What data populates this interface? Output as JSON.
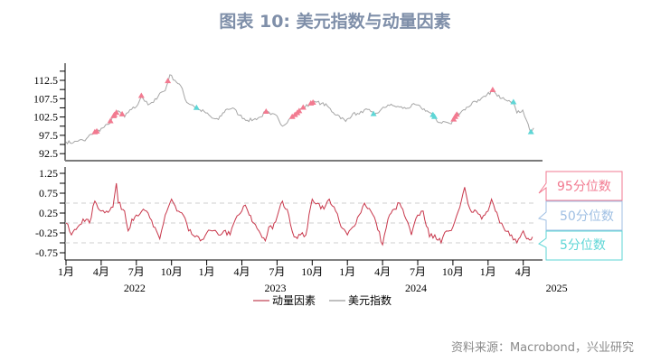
{
  "title": "图表 10: 美元指数与动量因素",
  "source": "资料来源：Macrobond，兴业研究",
  "colors": {
    "momentum": "#c8374b",
    "dxy": "#a6a6a6",
    "p95": "#f27a90",
    "p50": "#9fbfe3",
    "p5": "#5ed6d6"
  },
  "chart_data": [
    {
      "type": "line",
      "name": "dxy-panel",
      "ylim": [
        90,
        117.5
      ],
      "yticks": [
        "112.5",
        "107.5",
        "102.5",
        "97.5",
        "92.5"
      ],
      "series": [
        {
          "name": "美元指数",
          "x": [
            "2022-01-01",
            "2022-01-20",
            "2022-02-05",
            "2022-02-20",
            "2022-03-05",
            "2022-03-20",
            "2022-04-05",
            "2022-04-20",
            "2022-05-05",
            "2022-05-15",
            "2022-06-01",
            "2022-06-15",
            "2022-07-01",
            "2022-07-14",
            "2022-08-01",
            "2022-08-15",
            "2022-09-01",
            "2022-09-15",
            "2022-09-27",
            "2022-10-10",
            "2022-10-25",
            "2022-11-10",
            "2022-11-25",
            "2022-12-10",
            "2022-12-25",
            "2023-01-15",
            "2023-02-01",
            "2023-02-20",
            "2023-03-08",
            "2023-03-25",
            "2023-04-15",
            "2023-05-01",
            "2023-05-20",
            "2023-06-01",
            "2023-06-15",
            "2023-07-01",
            "2023-07-15",
            "2023-08-01",
            "2023-08-20",
            "2023-09-05",
            "2023-09-25",
            "2023-10-10",
            "2023-10-25",
            "2023-11-10",
            "2023-11-25",
            "2023-12-10",
            "2023-12-27",
            "2024-01-15",
            "2024-02-01",
            "2024-02-15",
            "2024-03-01",
            "2024-03-10",
            "2024-03-25",
            "2024-04-15",
            "2024-05-01",
            "2024-05-15",
            "2024-06-01",
            "2024-06-25",
            "2024-07-10",
            "2024-07-25",
            "2024-08-10",
            "2024-08-25",
            "2024-09-10",
            "2024-09-27",
            "2024-10-10",
            "2024-10-25",
            "2024-11-10",
            "2024-11-25",
            "2024-12-10",
            "2024-12-25",
            "2025-01-13",
            "2025-01-25",
            "2025-02-10",
            "2025-02-25",
            "2025-03-05",
            "2025-03-15",
            "2025-03-30",
            "2025-04-10",
            "2025-04-21",
            "2025-04-28"
          ],
          "y": [
            95.7,
            95.5,
            96.2,
            96.0,
            97.8,
            98.5,
            99.5,
            100.5,
            103.0,
            104.2,
            102.5,
            104.5,
            105.3,
            108.2,
            105.8,
            106.5,
            109.0,
            109.7,
            114.0,
            112.5,
            111.0,
            106.5,
            105.8,
            104.5,
            104.0,
            102.2,
            101.8,
            104.5,
            105.0,
            103.0,
            101.6,
            101.8,
            102.5,
            104.0,
            103.2,
            102.8,
            100.0,
            101.8,
            103.2,
            104.8,
            106.0,
            106.6,
            106.2,
            105.5,
            103.7,
            102.8,
            101.3,
            103.4,
            103.3,
            104.5,
            104.0,
            103.0,
            104.2,
            105.8,
            105.5,
            105.2,
            104.8,
            105.9,
            105.0,
            104.2,
            103.0,
            101.0,
            101.2,
            100.6,
            103.0,
            104.2,
            105.2,
            106.8,
            107.0,
            108.1,
            109.8,
            108.2,
            107.8,
            107.0,
            106.8,
            103.6,
            104.4,
            101.5,
            98.3,
            99.5
          ]
        }
      ],
      "markers_95": [
        "2022-03-15",
        "2022-03-20",
        "2022-04-25",
        "2022-05-03",
        "2022-05-05",
        "2022-05-10",
        "2022-05-25",
        "2022-07-14",
        "2022-09-22",
        "2023-06-03",
        "2023-08-10",
        "2023-08-17",
        "2023-08-23",
        "2023-08-28",
        "2023-09-08",
        "2023-09-28",
        "2023-10-03",
        "2024-10-03",
        "2024-10-07",
        "2024-10-11",
        "2025-01-13"
      ],
      "markers_5": [
        "2022-12-05",
        "2024-03-08",
        "2024-08-10",
        "2024-08-14",
        "2025-03-06",
        "2025-04-21"
      ]
    },
    {
      "type": "line",
      "name": "momentum-panel",
      "ylim": [
        -1.0,
        1.5
      ],
      "yticks": [
        "1.25",
        "0.75",
        "0.25",
        "-0.25",
        "-0.75"
      ],
      "reference_lines": [
        {
          "label": "95分位数",
          "value": 0.5
        },
        {
          "label": "50分位数",
          "value": 0.0
        },
        {
          "label": "5分位数",
          "value": -0.5
        }
      ],
      "xticks": [
        "1月",
        "4月",
        "7月",
        "10月",
        "1月",
        "4月",
        "7月",
        "10月",
        "1月",
        "4月",
        "7月",
        "10月",
        "1月",
        "4月"
      ],
      "years": [
        "2022",
        "2023",
        "2024",
        "2025"
      ],
      "series": [
        {
          "name": "动量因素",
          "x": [
            "2022-01-01",
            "2022-01-15",
            "2022-02-01",
            "2022-02-15",
            "2022-03-01",
            "2022-03-15",
            "2022-04-01",
            "2022-04-15",
            "2022-05-01",
            "2022-05-10",
            "2022-05-15",
            "2022-06-01",
            "2022-06-10",
            "2022-06-20",
            "2022-07-01",
            "2022-07-15",
            "2022-08-01",
            "2022-08-15",
            "2022-09-01",
            "2022-09-15",
            "2022-10-01",
            "2022-10-15",
            "2022-11-01",
            "2022-11-15",
            "2022-12-01",
            "2022-12-15",
            "2023-01-01",
            "2023-01-15",
            "2023-02-01",
            "2023-02-15",
            "2023-03-01",
            "2023-03-15",
            "2023-04-01",
            "2023-04-10",
            "2023-04-20",
            "2023-05-01",
            "2023-05-15",
            "2023-06-01",
            "2023-06-10",
            "2023-06-20",
            "2023-07-01",
            "2023-07-15",
            "2023-08-01",
            "2023-08-15",
            "2023-09-01",
            "2023-09-15",
            "2023-10-01",
            "2023-10-15",
            "2023-11-01",
            "2023-11-15",
            "2023-12-01",
            "2023-12-15",
            "2024-01-01",
            "2024-01-15",
            "2024-02-01",
            "2024-02-15",
            "2024-03-01",
            "2024-03-15",
            "2024-04-01",
            "2024-04-15",
            "2024-05-01",
            "2024-05-15",
            "2024-06-01",
            "2024-06-15",
            "2024-07-01",
            "2024-07-15",
            "2024-08-01",
            "2024-08-15",
            "2024-09-01",
            "2024-09-15",
            "2024-10-01",
            "2024-10-15",
            "2024-11-01",
            "2024-11-15",
            "2024-12-01",
            "2024-12-15",
            "2025-01-01",
            "2025-01-10",
            "2025-01-20",
            "2025-02-01",
            "2025-02-15",
            "2025-03-01",
            "2025-03-15",
            "2025-04-01",
            "2025-04-10",
            "2025-04-25"
          ],
          "y": [
            0.0,
            -0.3,
            -0.1,
            0.1,
            0.0,
            0.55,
            0.3,
            0.3,
            0.4,
            1.0,
            0.5,
            0.3,
            -0.2,
            0.1,
            0.2,
            0.3,
            0.25,
            -0.1,
            -0.4,
            0.2,
            0.6,
            0.3,
            0.2,
            -0.2,
            -0.35,
            -0.45,
            -0.25,
            -0.2,
            -0.3,
            -0.2,
            -0.3,
            0.1,
            0.3,
            0.45,
            0.2,
            0.0,
            -0.2,
            -0.45,
            -0.1,
            -0.15,
            0.15,
            0.55,
            0.2,
            -0.35,
            -0.3,
            -0.3,
            0.6,
            0.5,
            0.35,
            0.6,
            0.3,
            -0.1,
            -0.3,
            -0.1,
            0.2,
            0.5,
            0.3,
            0.0,
            -0.55,
            0.1,
            0.35,
            0.5,
            0.1,
            -0.3,
            0.2,
            0.3,
            -0.35,
            -0.3,
            -0.5,
            -0.2,
            -0.1,
            0.3,
            0.9,
            0.35,
            0.3,
            0.1,
            0.3,
            0.6,
            0.3,
            0.0,
            -0.2,
            -0.3,
            -0.5,
            -0.2,
            -0.4,
            -0.35
          ]
        }
      ]
    }
  ]
}
